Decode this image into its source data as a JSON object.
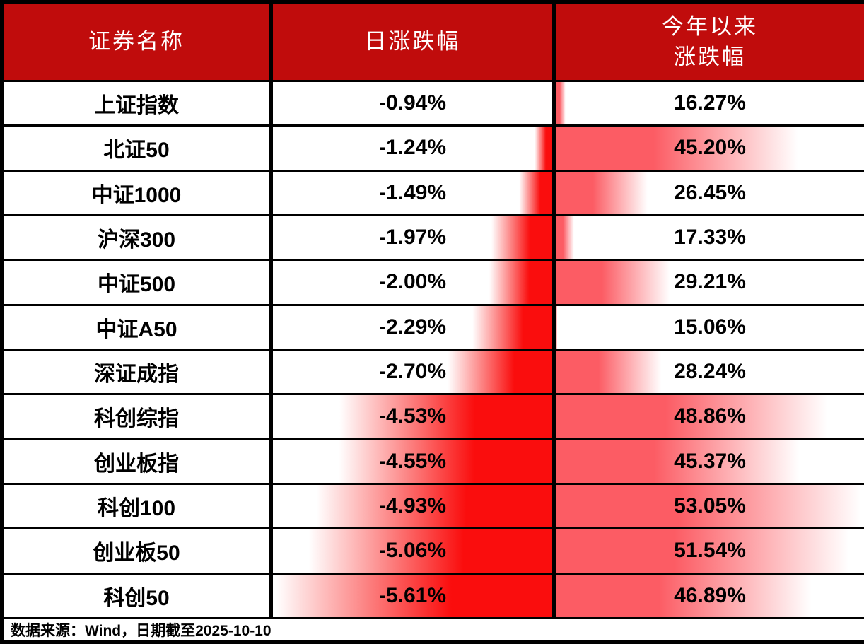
{
  "table": {
    "columns": [
      {
        "label": "证券名称"
      },
      {
        "label": "日涨跌幅"
      },
      {
        "label": "今年以来\n涨跌幅"
      }
    ],
    "rows": [
      {
        "name": "上证指数",
        "daily": "-0.94%",
        "ytd": "16.27%",
        "daily_bar_pct": 0,
        "ytd_bar_pct": 3.2
      },
      {
        "name": "北证50",
        "daily": "-1.24%",
        "ytd": "45.20%",
        "daily_bar_pct": 6.4,
        "ytd_bar_pct": 79.3
      },
      {
        "name": "中证1000",
        "daily": "-1.49%",
        "ytd": "26.45%",
        "daily_bar_pct": 11.8,
        "ytd_bar_pct": 30.0
      },
      {
        "name": "沪深300",
        "daily": "-1.97%",
        "ytd": "17.33%",
        "daily_bar_pct": 22.1,
        "ytd_bar_pct": 6.0
      },
      {
        "name": "中证500",
        "daily": "-2.00%",
        "ytd": "29.21%",
        "daily_bar_pct": 22.7,
        "ytd_bar_pct": 37.3
      },
      {
        "name": "中证A50",
        "daily": "-2.29%",
        "ytd": "15.06%",
        "daily_bar_pct": 28.9,
        "ytd_bar_pct": 0.5
      },
      {
        "name": "深证成指",
        "daily": "-2.70%",
        "ytd": "28.24%",
        "daily_bar_pct": 37.7,
        "ytd_bar_pct": 34.7
      },
      {
        "name": "科创综指",
        "daily": "-4.53%",
        "ytd": "48.86%",
        "daily_bar_pct": 76.9,
        "ytd_bar_pct": 89.0
      },
      {
        "name": "创业板指",
        "daily": "-4.55%",
        "ytd": "45.37%",
        "daily_bar_pct": 77.3,
        "ytd_bar_pct": 79.8
      },
      {
        "name": "科创100",
        "daily": "-4.93%",
        "ytd": "53.05%",
        "daily_bar_pct": 85.4,
        "ytd_bar_pct": 100
      },
      {
        "name": "创业板50",
        "daily": "-5.06%",
        "ytd": "51.54%",
        "daily_bar_pct": 88.2,
        "ytd_bar_pct": 96.0
      },
      {
        "name": "科创50",
        "daily": "-5.61%",
        "ytd": "46.89%",
        "daily_bar_pct": 100,
        "ytd_bar_pct": 83.8
      }
    ],
    "footer": "数据来源：Wind，日期截至2025-10-10"
  },
  "colors": {
    "header_bg": "#C00C0C",
    "header_text": "#FFFFFF",
    "daily_bar": "#FA0D0D",
    "ytd_bar": "#FC5C64",
    "border": "#000000",
    "text": "#000000"
  },
  "chart_data": {
    "type": "table",
    "title": "",
    "columns": [
      "证券名称",
      "日涨跌幅",
      "今年以来涨跌幅"
    ],
    "units": "%",
    "rows": [
      [
        "上证指数",
        -0.94,
        16.27
      ],
      [
        "北证50",
        -1.24,
        45.2
      ],
      [
        "中证1000",
        -1.49,
        26.45
      ],
      [
        "沪深300",
        -1.97,
        17.33
      ],
      [
        "中证500",
        -2.0,
        29.21
      ],
      [
        "中证A50",
        -2.29,
        15.06
      ],
      [
        "深证成指",
        -2.7,
        28.24
      ],
      [
        "科创综指",
        -4.53,
        48.86
      ],
      [
        "创业板指",
        -4.55,
        45.37
      ],
      [
        "科创100",
        -4.93,
        53.05
      ],
      [
        "创业板50",
        -5.06,
        51.54
      ],
      [
        "科创50",
        -5.61,
        46.89
      ]
    ],
    "databar_scales": {
      "daily_column": {
        "min": -5.61,
        "max": -0.94,
        "anchor": "right"
      },
      "ytd_column": {
        "min": 15.06,
        "max": 53.05,
        "anchor": "left"
      }
    },
    "source_note": "数据来源：Wind，日期截至2025-10-10"
  }
}
